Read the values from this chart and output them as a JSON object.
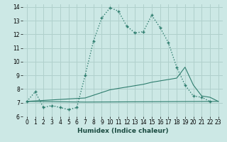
{
  "xlabel": "Humidex (Indice chaleur)",
  "bg_color": "#cce8e5",
  "grid_color": "#b0d0cc",
  "line_color": "#2e7d6e",
  "xlim": [
    -0.5,
    23.5
  ],
  "ylim": [
    6,
    14.2
  ],
  "xticks": [
    0,
    1,
    2,
    3,
    4,
    5,
    6,
    7,
    8,
    9,
    10,
    11,
    12,
    13,
    14,
    15,
    16,
    17,
    18,
    19,
    20,
    21,
    22,
    23
  ],
  "yticks": [
    6,
    7,
    8,
    9,
    10,
    11,
    12,
    13,
    14
  ],
  "line1_x": [
    0,
    1,
    2,
    3,
    4,
    5,
    6,
    7,
    8,
    9,
    10,
    11,
    12,
    13,
    14,
    15,
    16,
    17,
    18,
    19,
    20,
    21,
    22
  ],
  "line1_y": [
    7.1,
    7.8,
    6.65,
    6.8,
    6.65,
    6.5,
    6.65,
    9.0,
    11.5,
    13.2,
    13.95,
    13.7,
    12.6,
    12.1,
    12.2,
    13.4,
    12.5,
    11.4,
    9.6,
    8.3,
    7.5,
    7.4,
    7.1
  ],
  "line2_x": [
    0,
    7,
    23
  ],
  "line2_y": [
    7.1,
    7.05,
    7.1
  ],
  "line3_x": [
    0,
    7,
    8,
    9,
    10,
    11,
    12,
    13,
    14,
    15,
    16,
    17,
    18,
    19,
    20,
    21,
    22,
    23
  ],
  "line3_y": [
    7.1,
    7.35,
    7.55,
    7.75,
    7.95,
    8.05,
    8.15,
    8.25,
    8.35,
    8.5,
    8.6,
    8.7,
    8.8,
    9.6,
    8.3,
    7.5,
    7.4,
    7.1
  ]
}
